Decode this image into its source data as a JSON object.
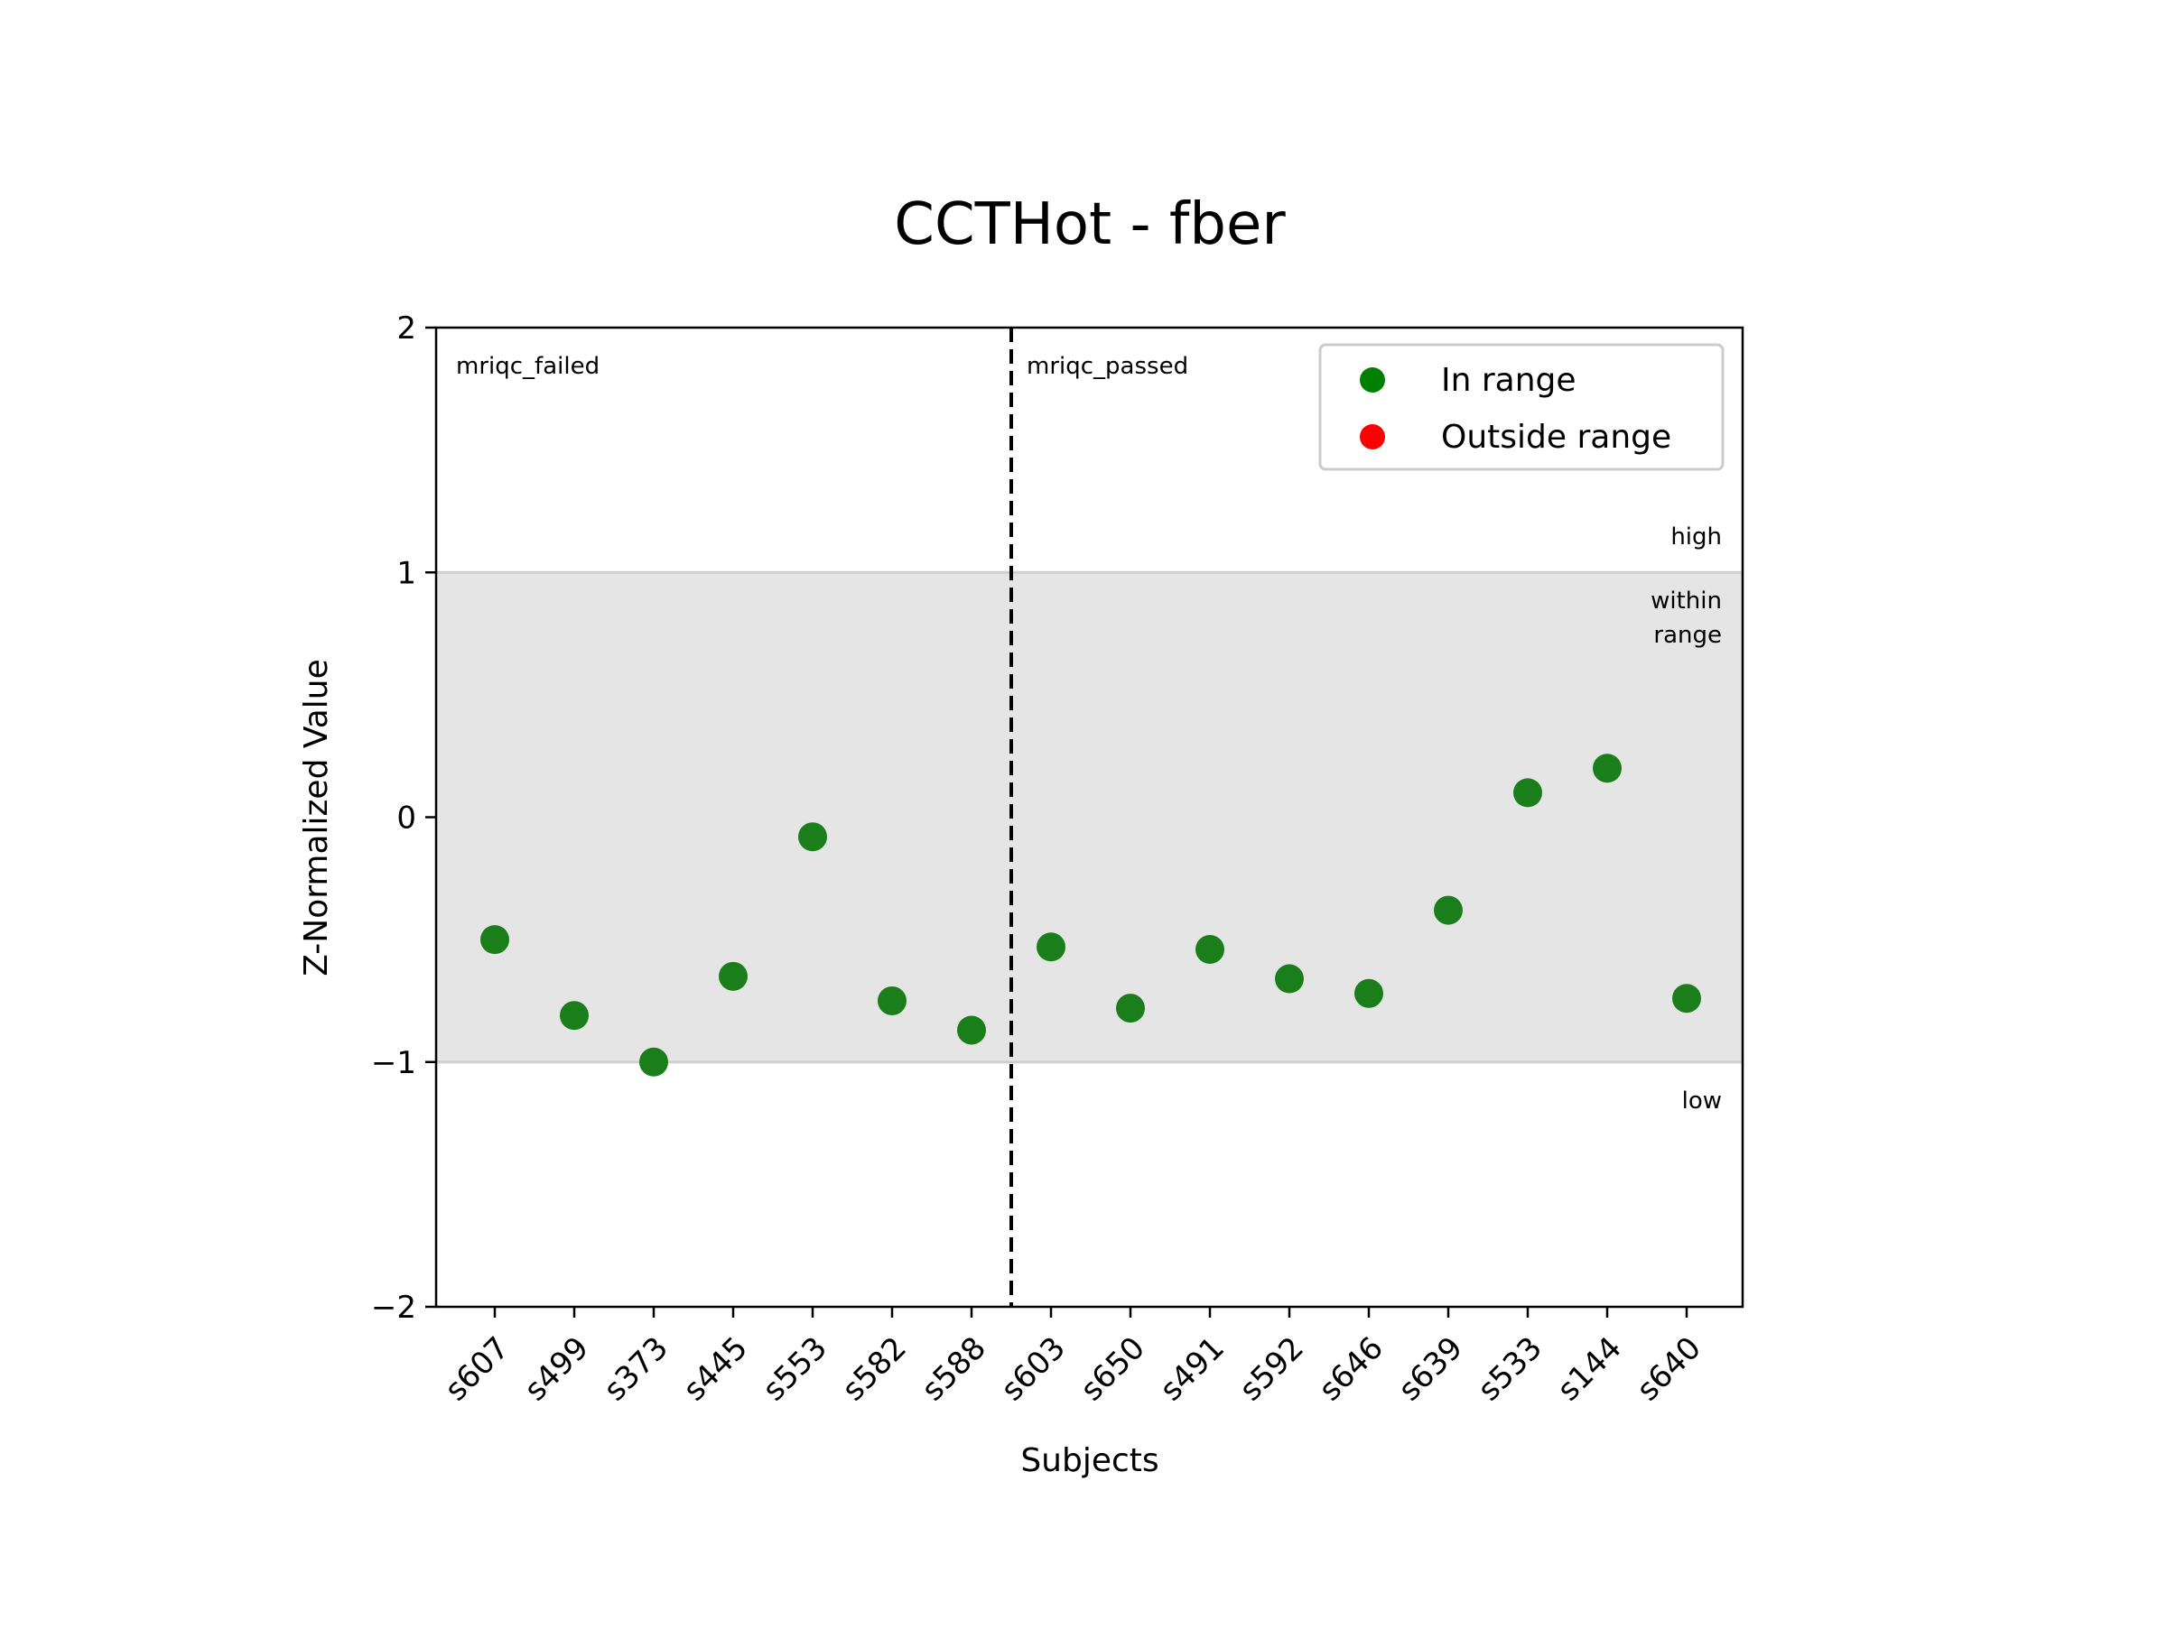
{
  "chart_data": {
    "type": "scatter",
    "title": "CCTHot - fber",
    "xlabel": "Subjects",
    "ylabel": "Z-Normalized Value",
    "ylim": [
      -2,
      2
    ],
    "yticks": [
      2,
      1,
      0,
      -1,
      -2
    ],
    "ytick_labels": [
      "2",
      "1",
      "0",
      "−1",
      "−2"
    ],
    "categories": [
      "s607",
      "s499",
      "s373",
      "s445",
      "s553",
      "s582",
      "s588",
      "s603",
      "s650",
      "s491",
      "s592",
      "s646",
      "s639",
      "s533",
      "s144",
      "s640"
    ],
    "series": [
      {
        "name": "In range",
        "color": "#1a7f1a",
        "values": [
          -0.5,
          -0.81,
          -1.0,
          -0.65,
          -0.08,
          -0.75,
          -0.87,
          -0.53,
          -0.78,
          -0.54,
          -0.66,
          -0.72,
          -0.38,
          0.1,
          0.2,
          -0.74
        ]
      },
      {
        "name": "Outside range",
        "color": "#ff0000",
        "values": []
      }
    ],
    "range_band": {
      "low": -1,
      "high": 1,
      "color": "#e5e5e5"
    },
    "group_divider_after_index": 6,
    "group_labels": [
      "mriqc_failed",
      "mriqc_passed"
    ],
    "band_labels": {
      "high": "high",
      "within_line1": "within",
      "within_line2": "range",
      "low": "low"
    },
    "legend": {
      "position": "upper-right",
      "entries": [
        {
          "label": "In range",
          "color": "#008000"
        },
        {
          "label": "Outside range",
          "color": "#ff0000"
        }
      ]
    },
    "grid": false
  }
}
